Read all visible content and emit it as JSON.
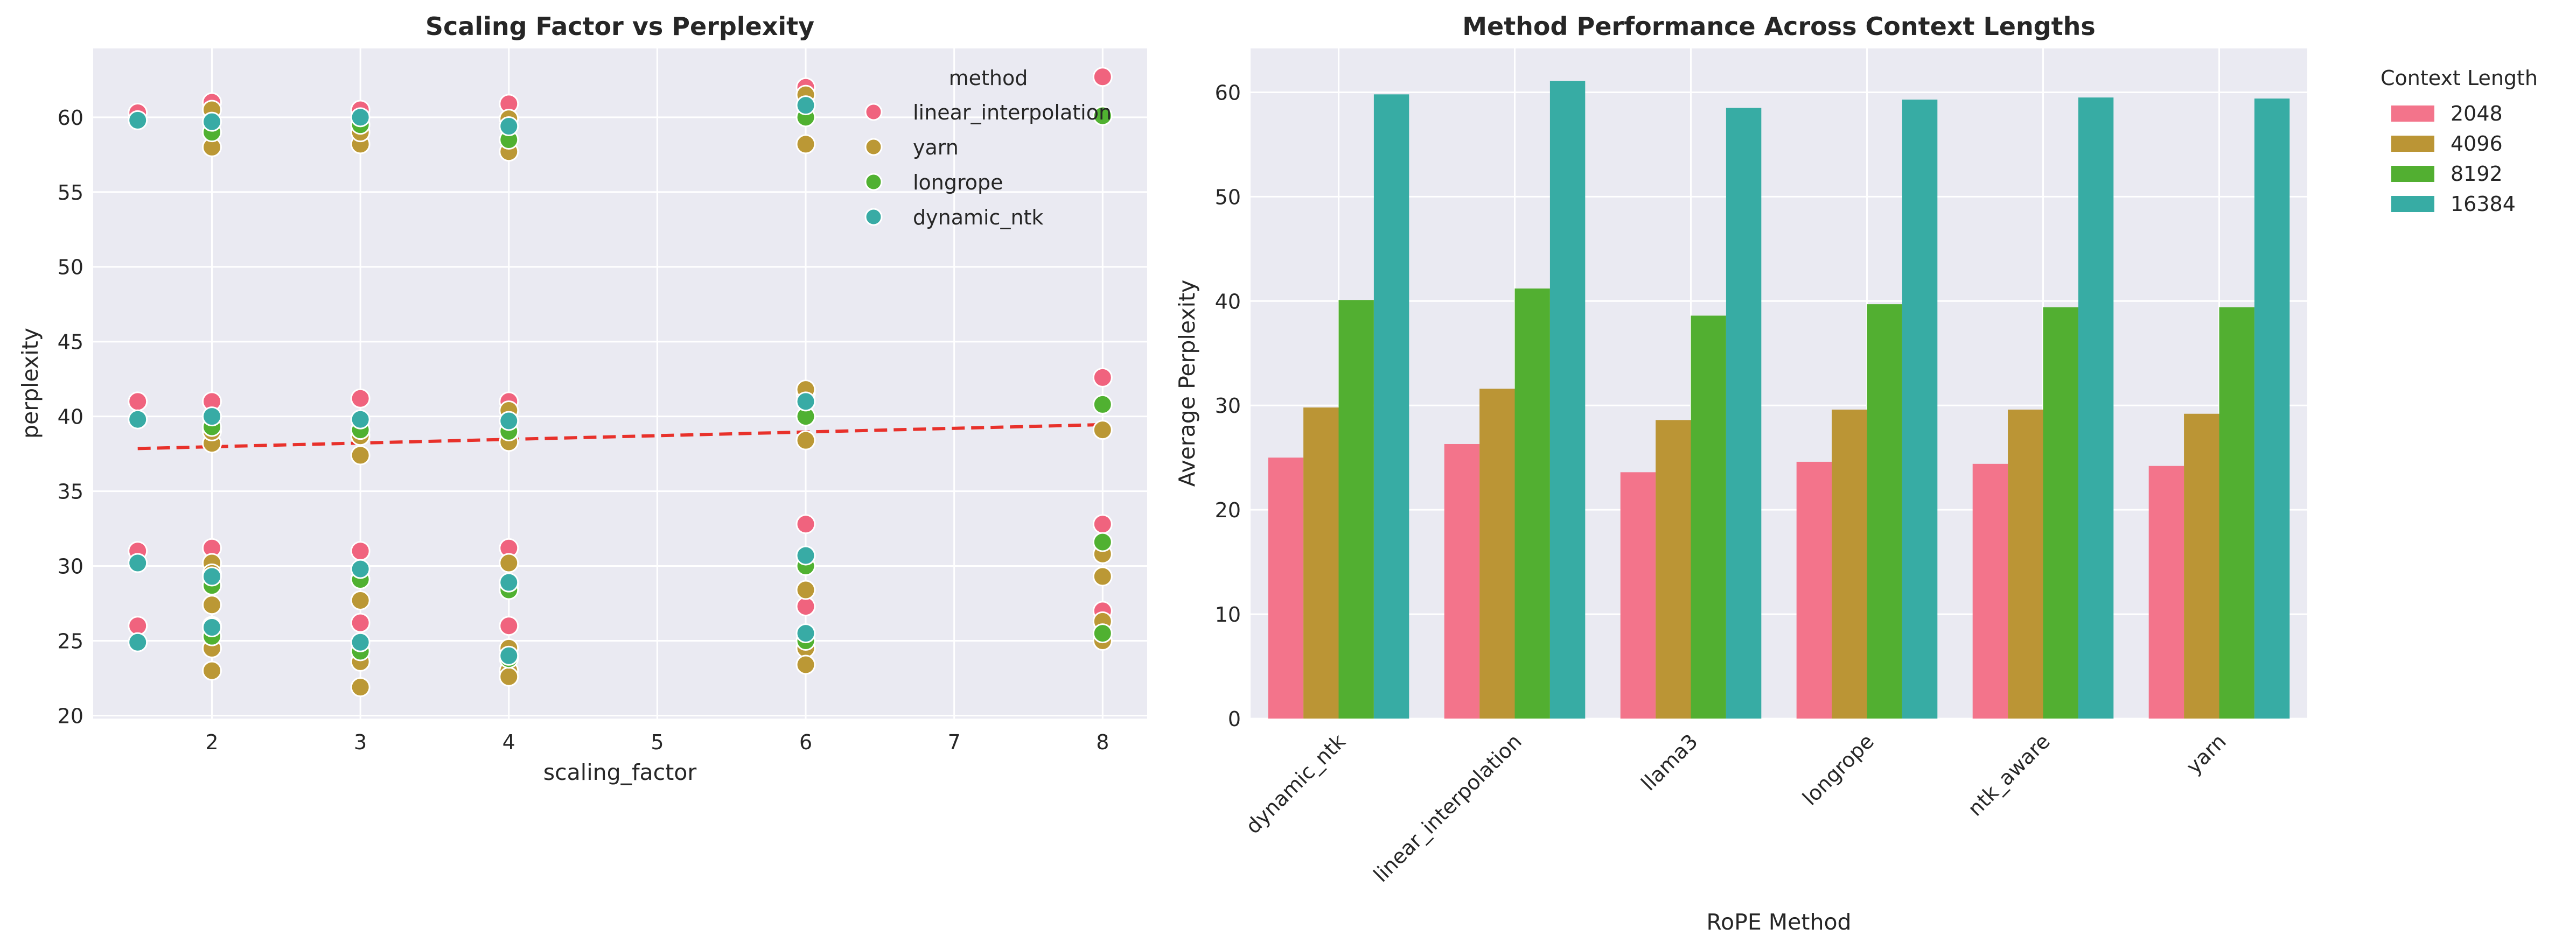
{
  "chart_data": [
    {
      "type": "scatter",
      "title": "Scaling Factor vs Perplexity",
      "xlabel": "scaling_factor",
      "ylabel": "perplexity",
      "xlim": [
        1.2,
        8.3
      ],
      "ylim": [
        19.8,
        64.6
      ],
      "xticks": [
        2,
        3,
        4,
        5,
        6,
        7,
        8
      ],
      "yticks": [
        20,
        25,
        30,
        35,
        40,
        45,
        50,
        55,
        60
      ],
      "grid": true,
      "legend": {
        "title": "method",
        "placement": "top-right"
      },
      "series": [
        {
          "name": "linear_interpolation",
          "color": "#f0637e",
          "points": [
            [
              1.5,
              60.3
            ],
            [
              1.5,
              41.0
            ],
            [
              1.5,
              31.0
            ],
            [
              1.5,
              26.0
            ],
            [
              2,
              61.0
            ],
            [
              2,
              41.0
            ],
            [
              2,
              31.2
            ],
            [
              2,
              26.0
            ],
            [
              3,
              60.5
            ],
            [
              3,
              41.2
            ],
            [
              3,
              31.0
            ],
            [
              3,
              26.2
            ],
            [
              4,
              60.9
            ],
            [
              4,
              41.0
            ],
            [
              4,
              31.2
            ],
            [
              4,
              26.0
            ],
            [
              6,
              62.0
            ],
            [
              6,
              41.5
            ],
            [
              6,
              32.8
            ],
            [
              6,
              27.3
            ],
            [
              8,
              62.7
            ],
            [
              8,
              42.6
            ],
            [
              8,
              32.8
            ],
            [
              8,
              27.0
            ]
          ]
        },
        {
          "name": "yarn",
          "color": "#bb9835",
          "points": [
            [
              2,
              58.0
            ],
            [
              2,
              60.5
            ],
            [
              2,
              38.2
            ],
            [
              2,
              39.0
            ],
            [
              2,
              30.2
            ],
            [
              2,
              29.5
            ],
            [
              2,
              27.4
            ],
            [
              2,
              24.5
            ],
            [
              2,
              23.0
            ],
            [
              3,
              58.2
            ],
            [
              3,
              59.0
            ],
            [
              3,
              37.4
            ],
            [
              3,
              38.7
            ],
            [
              3,
              29.1
            ],
            [
              3,
              27.7
            ],
            [
              3,
              23.6
            ],
            [
              3,
              21.9
            ],
            [
              4,
              57.7
            ],
            [
              4,
              59.9
            ],
            [
              4,
              38.3
            ],
            [
              4,
              40.4
            ],
            [
              4,
              30.2
            ],
            [
              4,
              28.8
            ],
            [
              4,
              24.5
            ],
            [
              4,
              23.0
            ],
            [
              4,
              22.6
            ],
            [
              6,
              58.2
            ],
            [
              6,
              61.5
            ],
            [
              6,
              38.4
            ],
            [
              6,
              41.8
            ],
            [
              6,
              30.7
            ],
            [
              6,
              28.4
            ],
            [
              6,
              24.5
            ],
            [
              6,
              23.4
            ],
            [
              8,
              39.1
            ],
            [
              8,
              29.3
            ],
            [
              8,
              30.8
            ],
            [
              8,
              26.3
            ],
            [
              8,
              25.0
            ]
          ]
        },
        {
          "name": "longrope",
          "color": "#50b131",
          "points": [
            [
              2,
              59.0
            ],
            [
              2,
              39.3
            ],
            [
              2,
              28.7
            ],
            [
              2,
              25.3
            ],
            [
              3,
              59.5
            ],
            [
              3,
              39.1
            ],
            [
              3,
              29.1
            ],
            [
              3,
              24.3
            ],
            [
              4,
              58.5
            ],
            [
              4,
              39.0
            ],
            [
              4,
              28.4
            ],
            [
              4,
              23.8
            ],
            [
              6,
              60.0
            ],
            [
              6,
              40.0
            ],
            [
              6,
              30.0
            ],
            [
              6,
              25.0
            ],
            [
              8,
              60.1
            ],
            [
              8,
              40.8
            ],
            [
              8,
              31.6
            ],
            [
              8,
              25.5
            ]
          ]
        },
        {
          "name": "dynamic_ntk",
          "color": "#38aba5",
          "points": [
            [
              1.5,
              59.8
            ],
            [
              1.5,
              39.8
            ],
            [
              1.5,
              30.2
            ],
            [
              1.5,
              24.9
            ],
            [
              2,
              59.7
            ],
            [
              2,
              40.0
            ],
            [
              2,
              29.3
            ],
            [
              2,
              25.9
            ],
            [
              3,
              60.0
            ],
            [
              3,
              39.8
            ],
            [
              3,
              29.8
            ],
            [
              3,
              24.9
            ],
            [
              4,
              59.4
            ],
            [
              4,
              39.7
            ],
            [
              4,
              28.9
            ],
            [
              4,
              24.0
            ],
            [
              6,
              60.8
            ],
            [
              6,
              41.0
            ],
            [
              6,
              30.7
            ],
            [
              6,
              25.5
            ]
          ]
        }
      ],
      "trend_line": {
        "color": "#e8312b",
        "x": [
          1.5,
          8
        ],
        "y": [
          37.85,
          39.45
        ]
      }
    },
    {
      "type": "bar",
      "title": "Method Performance Across Context Lengths",
      "xlabel": "RoPE Method",
      "ylabel": "Average Perplexity",
      "ylim": [
        0,
        64.2
      ],
      "yticks": [
        0,
        10,
        20,
        30,
        40,
        50,
        60
      ],
      "grid": true,
      "categories": [
        "dynamic_ntk",
        "linear_interpolation",
        "llama3",
        "longrope",
        "ntk_aware",
        "yarn"
      ],
      "legend": {
        "title": "Context Length",
        "placement": "outside-right"
      },
      "series": [
        {
          "name": "2048",
          "color": "#f3748b",
          "values": [
            25.0,
            26.3,
            23.6,
            24.6,
            24.4,
            24.2
          ]
        },
        {
          "name": "4096",
          "color": "#bb9535",
          "values": [
            29.8,
            31.6,
            28.6,
            29.6,
            29.6,
            29.2
          ]
        },
        {
          "name": "8192",
          "color": "#52af31",
          "values": [
            40.1,
            41.2,
            38.6,
            39.7,
            39.4,
            39.4
          ]
        },
        {
          "name": "16384",
          "color": "#37aca4",
          "values": [
            59.8,
            61.1,
            58.5,
            59.3,
            59.5,
            59.4
          ]
        }
      ]
    }
  ]
}
